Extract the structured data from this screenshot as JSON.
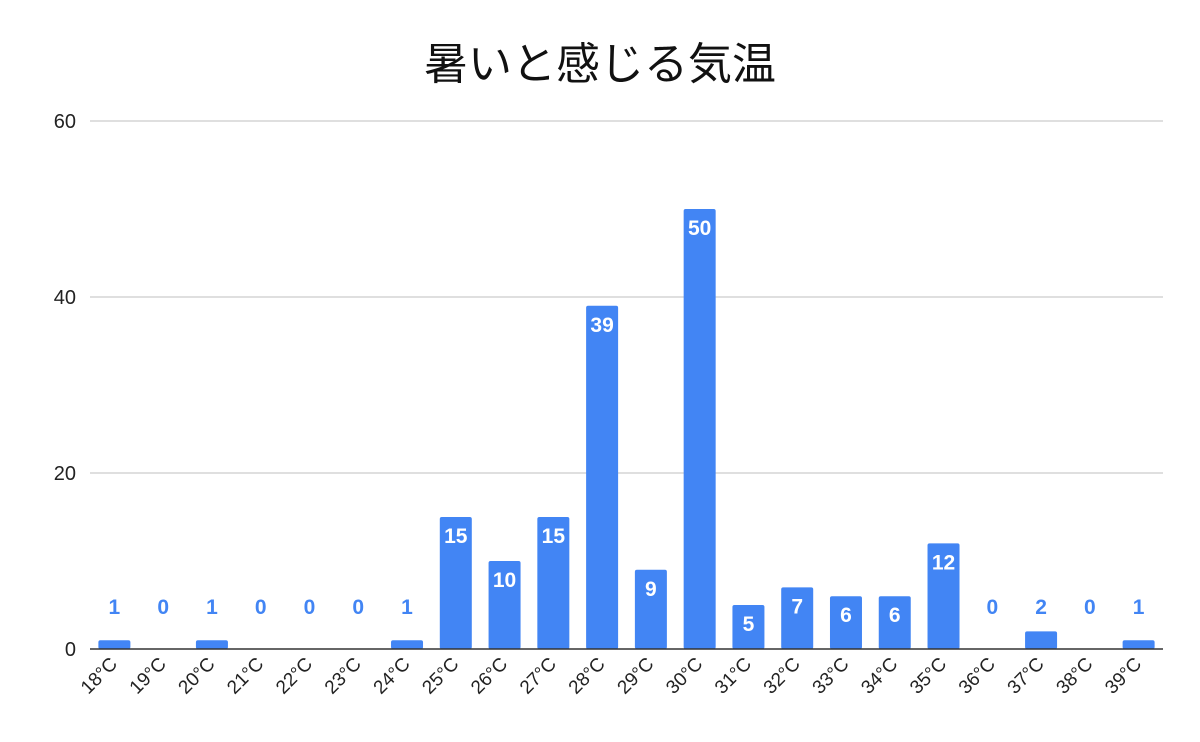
{
  "chart_data": {
    "type": "bar",
    "title": "暑いと感じる気温",
    "xlabel": "",
    "ylabel": "",
    "categories": [
      "18°C",
      "19°C",
      "20°C",
      "21°C",
      "22°C",
      "23°C",
      "24°C",
      "25°C",
      "26°C",
      "27°C",
      "28°C",
      "29°C",
      "30°C",
      "31°C",
      "32°C",
      "33°C",
      "34°C",
      "35°C",
      "36°C",
      "37°C",
      "38°C",
      "39°C"
    ],
    "values": [
      1,
      0,
      1,
      0,
      0,
      0,
      1,
      15,
      10,
      15,
      39,
      9,
      50,
      5,
      7,
      6,
      6,
      12,
      0,
      2,
      0,
      1
    ],
    "ylim": [
      0,
      60
    ],
    "yticks": [
      0,
      20,
      40,
      60
    ],
    "grid": true,
    "legend": "none",
    "data_labels": true,
    "colors": {
      "bar": "#4285f4",
      "label_inside": "#ffffff",
      "label_outside": "#4285f4",
      "grid": "#cccccc",
      "axis": "#333333"
    }
  }
}
